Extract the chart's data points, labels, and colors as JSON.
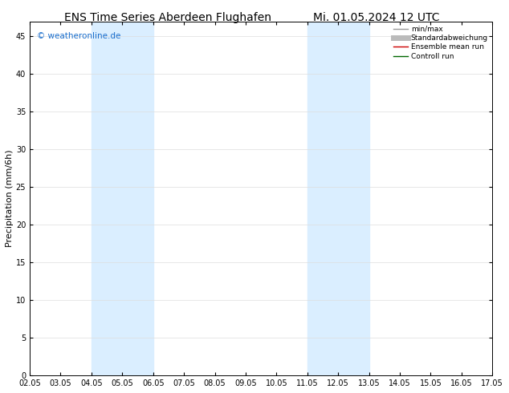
{
  "title_left": "ENS Time Series Aberdeen Flughafen",
  "title_right": "Mi. 01.05.2024 12 UTC",
  "ylabel": "Precipitation (mm/6h)",
  "ylim": [
    0,
    47
  ],
  "yticks": [
    0,
    5,
    10,
    15,
    20,
    25,
    30,
    35,
    40,
    45
  ],
  "xlim": [
    0,
    15
  ],
  "xtick_labels": [
    "02.05",
    "03.05",
    "04.05",
    "05.05",
    "06.05",
    "07.05",
    "08.05",
    "09.05",
    "10.05",
    "11.05",
    "12.05",
    "13.05",
    "14.05",
    "15.05",
    "16.05",
    "17.05"
  ],
  "shade_bands": [
    {
      "x_start": 2,
      "x_end": 4,
      "color": "#daeeff"
    },
    {
      "x_start": 9,
      "x_end": 11,
      "color": "#daeeff"
    }
  ],
  "copyright_text": "© weatheronline.de",
  "copyright_color": "#1a6ecc",
  "background_color": "#ffffff",
  "plot_bg_color": "#ffffff",
  "grid_color": "#dddddd",
  "legend_entries": [
    {
      "label": "min/max",
      "color": "#999999",
      "lw": 1.0,
      "type": "line"
    },
    {
      "label": "Standardabweichung",
      "color": "#bbbbbb",
      "lw": 5,
      "type": "line"
    },
    {
      "label": "Ensemble mean run",
      "color": "#cc0000",
      "lw": 1.0,
      "type": "line"
    },
    {
      "label": "Controll run",
      "color": "#006600",
      "lw": 1.0,
      "type": "line"
    }
  ],
  "title_fontsize": 10,
  "tick_fontsize": 7,
  "ylabel_fontsize": 8,
  "copyright_fontsize": 7.5,
  "legend_fontsize": 6.5
}
